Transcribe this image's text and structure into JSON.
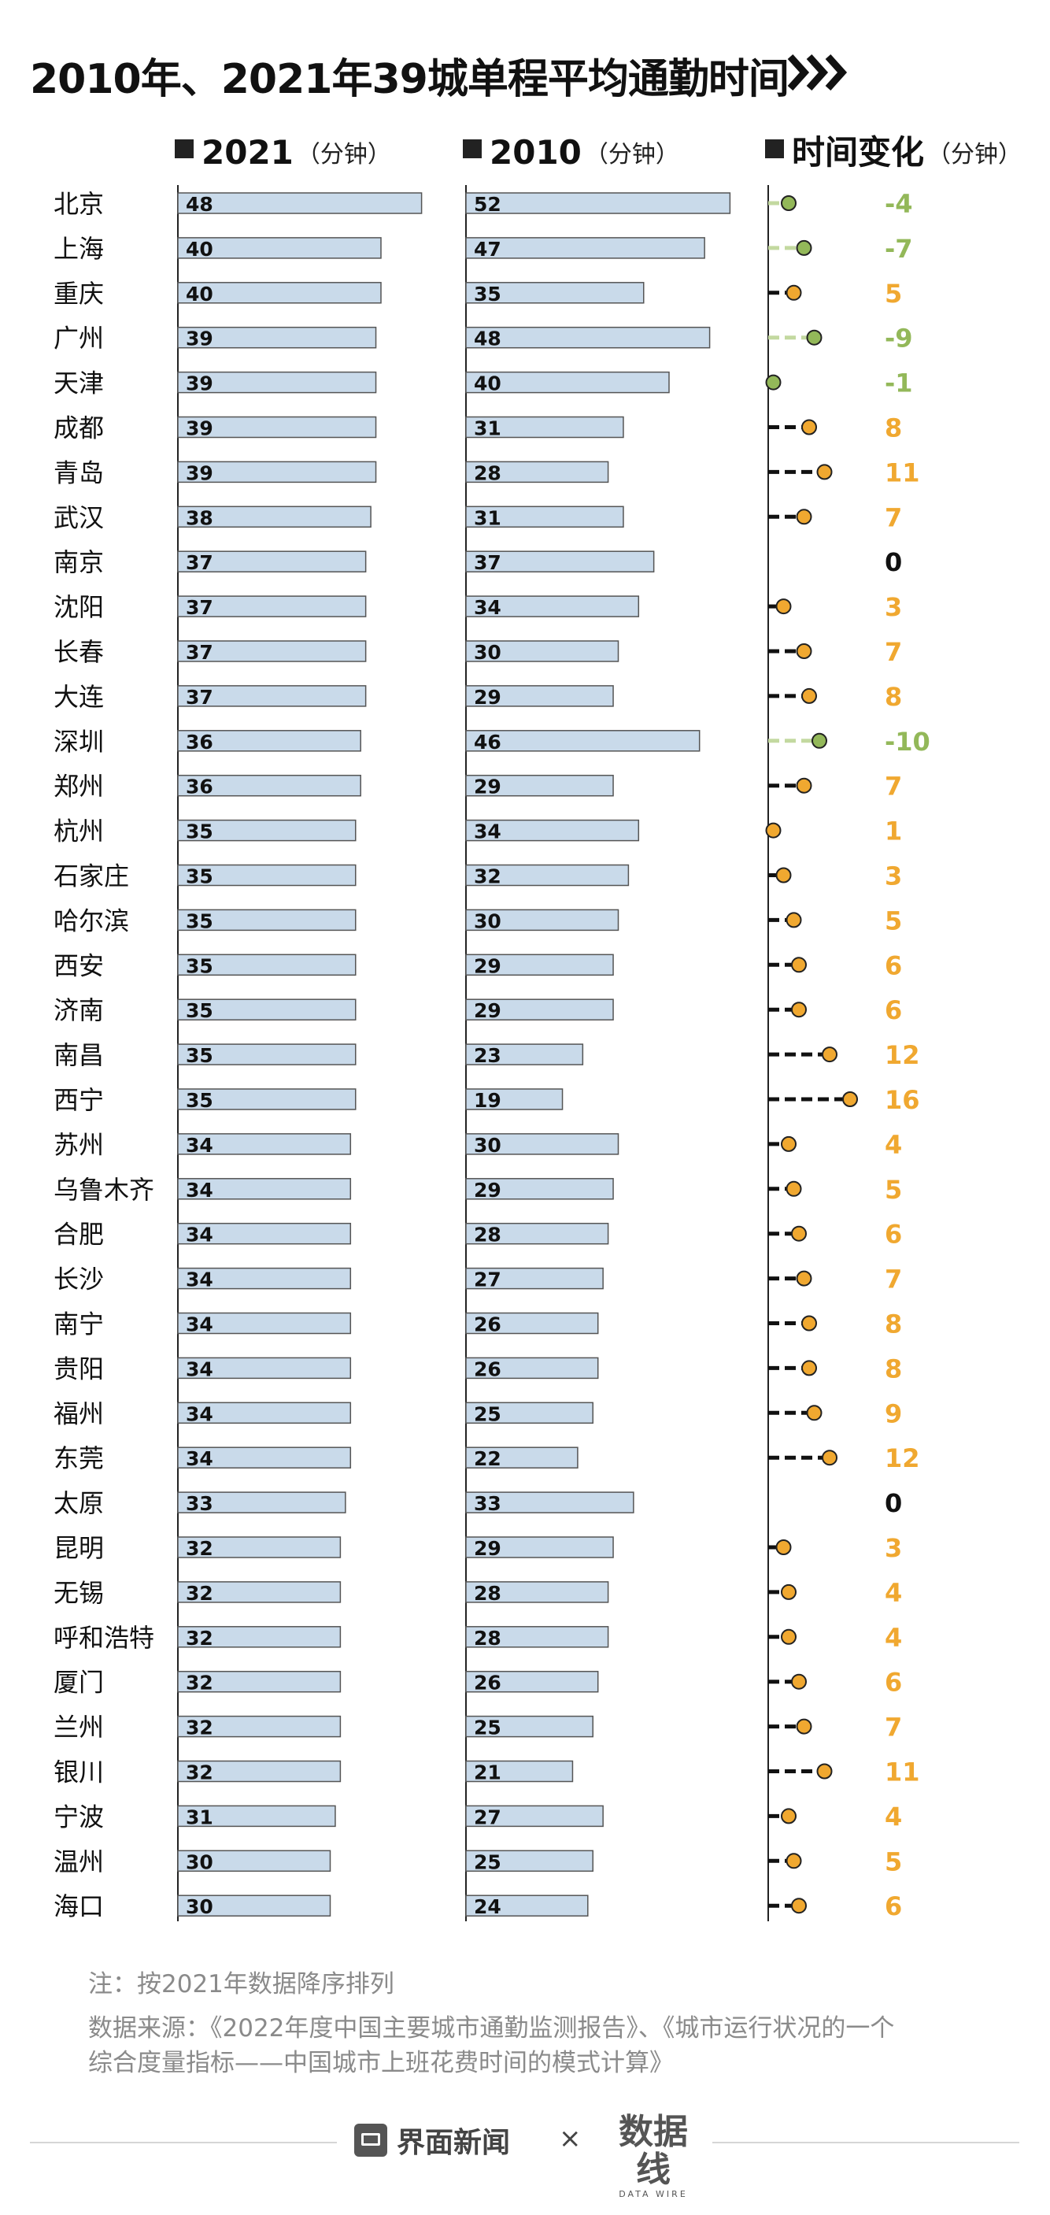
{
  "title": "2010年、2021年39城单程平均通勤时间",
  "headers": {
    "col2021": "2021",
    "col2010": "2010",
    "change": "时间变化",
    "unit": "（分钟）"
  },
  "colors": {
    "bar_fill": "#c9daea",
    "bar_stroke": "#555555",
    "positive": "#f0a830",
    "negative": "#93b859",
    "negative_line": "#c3d9a0",
    "zero": "#111111",
    "axis": "#222222"
  },
  "chart_data": {
    "type": "bar",
    "xlabel": "",
    "ylabel": "",
    "categories": [
      "北京",
      "上海",
      "重庆",
      "广州",
      "天津",
      "成都",
      "青岛",
      "武汉",
      "南京",
      "沈阳",
      "长春",
      "大连",
      "深圳",
      "郑州",
      "杭州",
      "石家庄",
      "哈尔滨",
      "西安",
      "济南",
      "南昌",
      "西宁",
      "苏州",
      "乌鲁木齐",
      "合肥",
      "长沙",
      "南宁",
      "贵阳",
      "福州",
      "东莞",
      "太原",
      "昆明",
      "无锡",
      "呼和浩特",
      "厦门",
      "兰州",
      "银川",
      "宁波",
      "温州",
      "海口"
    ],
    "series": [
      {
        "name": "2021",
        "values": [
          48,
          40,
          40,
          39,
          39,
          39,
          39,
          38,
          37,
          37,
          37,
          37,
          36,
          36,
          35,
          35,
          35,
          35,
          35,
          35,
          35,
          34,
          34,
          34,
          34,
          34,
          34,
          34,
          34,
          33,
          32,
          32,
          32,
          32,
          32,
          32,
          31,
          30,
          30
        ]
      },
      {
        "name": "2010",
        "values": [
          52,
          47,
          35,
          48,
          40,
          31,
          28,
          31,
          37,
          34,
          30,
          29,
          46,
          29,
          34,
          32,
          30,
          29,
          29,
          23,
          19,
          30,
          29,
          28,
          27,
          26,
          26,
          25,
          22,
          33,
          29,
          28,
          28,
          26,
          25,
          21,
          27,
          25,
          24
        ]
      },
      {
        "name": "时间变化",
        "values": [
          -4,
          -7,
          5,
          -9,
          -1,
          8,
          11,
          7,
          0,
          3,
          7,
          8,
          -10,
          7,
          1,
          3,
          5,
          6,
          6,
          12,
          16,
          4,
          5,
          6,
          7,
          8,
          8,
          9,
          12,
          0,
          3,
          4,
          4,
          6,
          7,
          11,
          4,
          5,
          6
        ]
      }
    ]
  },
  "notes": {
    "sort": "注：按2021年数据降序排列",
    "source_1": "数据来源：《2022年度中国主要城市通勤监测报告》、《城市运行状况的一个",
    "source_2": "综合度量指标——中国城市上班花费时间的模式计算》"
  },
  "footer": {
    "brand_jm": "界面新闻",
    "separator": "×",
    "brand_sjx": "数据线",
    "brand_sjx_en": "DATA WIRE"
  }
}
